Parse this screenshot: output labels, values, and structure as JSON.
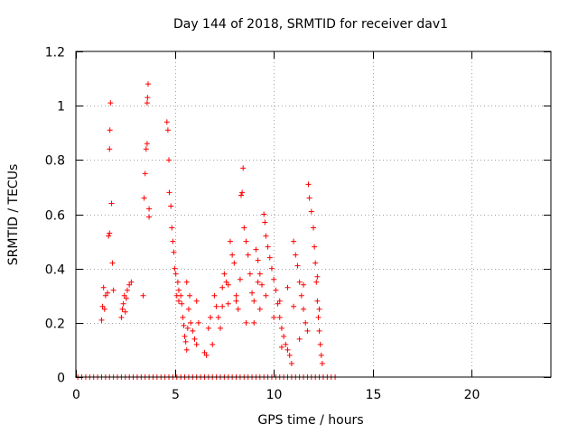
{
  "colors": {
    "series": "#ff0000",
    "grid": "#a0a0a0",
    "axis": "#000000",
    "background": "#ffffff"
  },
  "chart_data": {
    "type": "scatter",
    "title": "Day 144 of 2018, SRMTID for receiver dav1",
    "xlabel": "GPS time / hours",
    "ylabel": "SRMTID / TECUs",
    "xlim": [
      0,
      24
    ],
    "ylim": [
      0,
      1.2
    ],
    "grid": true,
    "xticks": [
      0,
      5,
      10,
      15,
      20
    ],
    "xtick_labels": [
      "0",
      "5",
      "10",
      "15",
      "20"
    ],
    "yticks": [
      0,
      0.2,
      0.4,
      0.6,
      0.8,
      1.0,
      1.2
    ],
    "ytick_labels": [
      "0",
      "0.2",
      "0.4",
      "0.6",
      "0.8",
      "1",
      "1.2"
    ],
    "marker": "plus",
    "series": [
      {
        "name": "dav1",
        "points": [
          [
            0.1,
            0
          ],
          [
            0.3,
            0
          ],
          [
            0.5,
            0
          ],
          [
            0.7,
            0
          ],
          [
            0.9,
            0
          ],
          [
            1.1,
            0
          ],
          [
            1.3,
            0
          ],
          [
            1.5,
            0
          ],
          [
            1.7,
            0
          ],
          [
            1.9,
            0
          ],
          [
            2.1,
            0
          ],
          [
            2.3,
            0
          ],
          [
            2.5,
            0
          ],
          [
            2.7,
            0
          ],
          [
            2.9,
            0
          ],
          [
            3.1,
            0
          ],
          [
            3.3,
            0
          ],
          [
            3.5,
            0
          ],
          [
            3.7,
            0
          ],
          [
            3.9,
            0
          ],
          [
            4.1,
            0
          ],
          [
            4.3,
            0
          ],
          [
            4.5,
            0
          ],
          [
            4.7,
            0
          ],
          [
            4.9,
            0
          ],
          [
            5.1,
            0
          ],
          [
            5.3,
            0
          ],
          [
            5.5,
            0
          ],
          [
            5.7,
            0
          ],
          [
            5.9,
            0
          ],
          [
            6.1,
            0
          ],
          [
            6.3,
            0
          ],
          [
            6.5,
            0
          ],
          [
            6.7,
            0
          ],
          [
            6.9,
            0
          ],
          [
            7.1,
            0
          ],
          [
            7.3,
            0
          ],
          [
            7.5,
            0
          ],
          [
            7.7,
            0
          ],
          [
            7.9,
            0
          ],
          [
            8.1,
            0
          ],
          [
            8.3,
            0
          ],
          [
            8.5,
            0
          ],
          [
            8.7,
            0
          ],
          [
            8.9,
            0
          ],
          [
            9.1,
            0
          ],
          [
            9.3,
            0
          ],
          [
            9.5,
            0
          ],
          [
            9.7,
            0
          ],
          [
            9.9,
            0
          ],
          [
            10.1,
            0
          ],
          [
            10.3,
            0
          ],
          [
            10.5,
            0
          ],
          [
            10.7,
            0
          ],
          [
            10.9,
            0
          ],
          [
            11.1,
            0
          ],
          [
            11.3,
            0
          ],
          [
            11.5,
            0
          ],
          [
            11.7,
            0
          ],
          [
            11.9,
            0
          ],
          [
            12.1,
            0
          ],
          [
            12.3,
            0
          ],
          [
            12.5,
            0
          ],
          [
            12.7,
            0
          ],
          [
            12.9,
            0
          ],
          [
            13.1,
            0
          ],
          [
            1.3,
            0.21
          ],
          [
            1.35,
            0.26
          ],
          [
            1.4,
            0.33
          ],
          [
            1.45,
            0.25
          ],
          [
            1.5,
            0.3
          ],
          [
            1.6,
            0.31
          ],
          [
            1.65,
            0.52
          ],
          [
            1.7,
            0.53
          ],
          [
            1.7,
            0.84
          ],
          [
            1.72,
            0.91
          ],
          [
            1.75,
            1.01
          ],
          [
            1.8,
            0.64
          ],
          [
            1.85,
            0.42
          ],
          [
            1.9,
            0.32
          ],
          [
            2.3,
            0.22
          ],
          [
            2.35,
            0.25
          ],
          [
            2.4,
            0.27
          ],
          [
            2.45,
            0.3
          ],
          [
            2.5,
            0.24
          ],
          [
            2.55,
            0.29
          ],
          [
            2.6,
            0.32
          ],
          [
            2.7,
            0.34
          ],
          [
            2.8,
            0.35
          ],
          [
            3.4,
            0.3
          ],
          [
            3.45,
            0.66
          ],
          [
            3.5,
            0.75
          ],
          [
            3.55,
            0.84
          ],
          [
            3.6,
            0.86
          ],
          [
            3.6,
            1.01
          ],
          [
            3.62,
            1.03
          ],
          [
            3.65,
            1.08
          ],
          [
            3.7,
            0.62
          ],
          [
            3.7,
            0.59
          ],
          [
            4.6,
            0.94
          ],
          [
            4.65,
            0.91
          ],
          [
            4.7,
            0.8
          ],
          [
            4.72,
            0.68
          ],
          [
            4.8,
            0.63
          ],
          [
            4.85,
            0.55
          ],
          [
            4.9,
            0.5
          ],
          [
            4.95,
            0.46
          ],
          [
            5.0,
            0.4
          ],
          [
            5.05,
            0.38
          ],
          [
            5.1,
            0.3
          ],
          [
            5.15,
            0.35
          ],
          [
            5.2,
            0.32
          ],
          [
            5.3,
            0.3
          ],
          [
            5.35,
            0.27
          ],
          [
            5.4,
            0.22
          ],
          [
            5.45,
            0.19
          ],
          [
            5.5,
            0.15
          ],
          [
            5.55,
            0.13
          ],
          [
            5.6,
            0.1
          ],
          [
            5.65,
            0.18
          ],
          [
            5.7,
            0.25
          ],
          [
            5.75,
            0.3
          ],
          [
            5.8,
            0.2
          ],
          [
            5.9,
            0.17
          ],
          [
            6.0,
            0.14
          ],
          [
            6.1,
            0.12
          ],
          [
            6.5,
            0.09
          ],
          [
            6.6,
            0.08
          ],
          [
            6.7,
            0.18
          ],
          [
            6.8,
            0.22
          ],
          [
            7.0,
            0.3
          ],
          [
            7.1,
            0.26
          ],
          [
            7.2,
            0.22
          ],
          [
            7.3,
            0.18
          ],
          [
            7.4,
            0.33
          ],
          [
            7.5,
            0.38
          ],
          [
            7.6,
            0.35
          ],
          [
            7.7,
            0.27
          ],
          [
            7.8,
            0.5
          ],
          [
            7.9,
            0.45
          ],
          [
            8.0,
            0.42
          ],
          [
            8.1,
            0.3
          ],
          [
            8.2,
            0.25
          ],
          [
            8.3,
            0.36
          ],
          [
            8.35,
            0.67
          ],
          [
            8.4,
            0.68
          ],
          [
            8.45,
            0.77
          ],
          [
            8.5,
            0.55
          ],
          [
            8.6,
            0.5
          ],
          [
            8.7,
            0.45
          ],
          [
            8.8,
            0.38
          ],
          [
            8.9,
            0.31
          ],
          [
            9.0,
            0.28
          ],
          [
            9.1,
            0.47
          ],
          [
            9.2,
            0.43
          ],
          [
            9.3,
            0.38
          ],
          [
            9.4,
            0.34
          ],
          [
            9.5,
            0.6
          ],
          [
            9.55,
            0.57
          ],
          [
            9.6,
            0.52
          ],
          [
            9.7,
            0.48
          ],
          [
            9.8,
            0.44
          ],
          [
            9.9,
            0.4
          ],
          [
            10.0,
            0.36
          ],
          [
            10.1,
            0.32
          ],
          [
            10.2,
            0.27
          ],
          [
            10.3,
            0.22
          ],
          [
            10.4,
            0.18
          ],
          [
            10.5,
            0.15
          ],
          [
            10.6,
            0.12
          ],
          [
            10.7,
            0.1
          ],
          [
            10.8,
            0.08
          ],
          [
            10.9,
            0.05
          ],
          [
            11.0,
            0.5
          ],
          [
            11.1,
            0.45
          ],
          [
            11.2,
            0.41
          ],
          [
            11.3,
            0.35
          ],
          [
            11.4,
            0.3
          ],
          [
            11.5,
            0.25
          ],
          [
            11.6,
            0.2
          ],
          [
            11.7,
            0.17
          ],
          [
            11.75,
            0.71
          ],
          [
            11.8,
            0.66
          ],
          [
            11.9,
            0.61
          ],
          [
            12.0,
            0.55
          ],
          [
            12.05,
            0.48
          ],
          [
            12.1,
            0.42
          ],
          [
            12.15,
            0.35
          ],
          [
            12.2,
            0.28
          ],
          [
            12.25,
            0.22
          ],
          [
            12.3,
            0.17
          ],
          [
            12.35,
            0.12
          ],
          [
            12.4,
            0.08
          ],
          [
            12.45,
            0.05
          ],
          [
            5.2,
            0.28
          ],
          [
            6.2,
            0.2
          ],
          [
            7.7,
            0.34
          ],
          [
            8.1,
            0.28
          ],
          [
            9.0,
            0.2
          ],
          [
            9.3,
            0.25
          ],
          [
            9.6,
            0.3
          ],
          [
            10.0,
            0.22
          ],
          [
            10.3,
            0.28
          ],
          [
            10.7,
            0.33
          ],
          [
            11.0,
            0.26
          ],
          [
            11.5,
            0.34
          ],
          [
            12.2,
            0.37
          ],
          [
            12.3,
            0.25
          ],
          [
            11.3,
            0.14
          ],
          [
            10.4,
            0.11
          ],
          [
            9.2,
            0.35
          ],
          [
            8.6,
            0.2
          ],
          [
            7.4,
            0.26
          ],
          [
            5.6,
            0.35
          ],
          [
            6.1,
            0.28
          ],
          [
            6.9,
            0.12
          ]
        ]
      }
    ]
  }
}
